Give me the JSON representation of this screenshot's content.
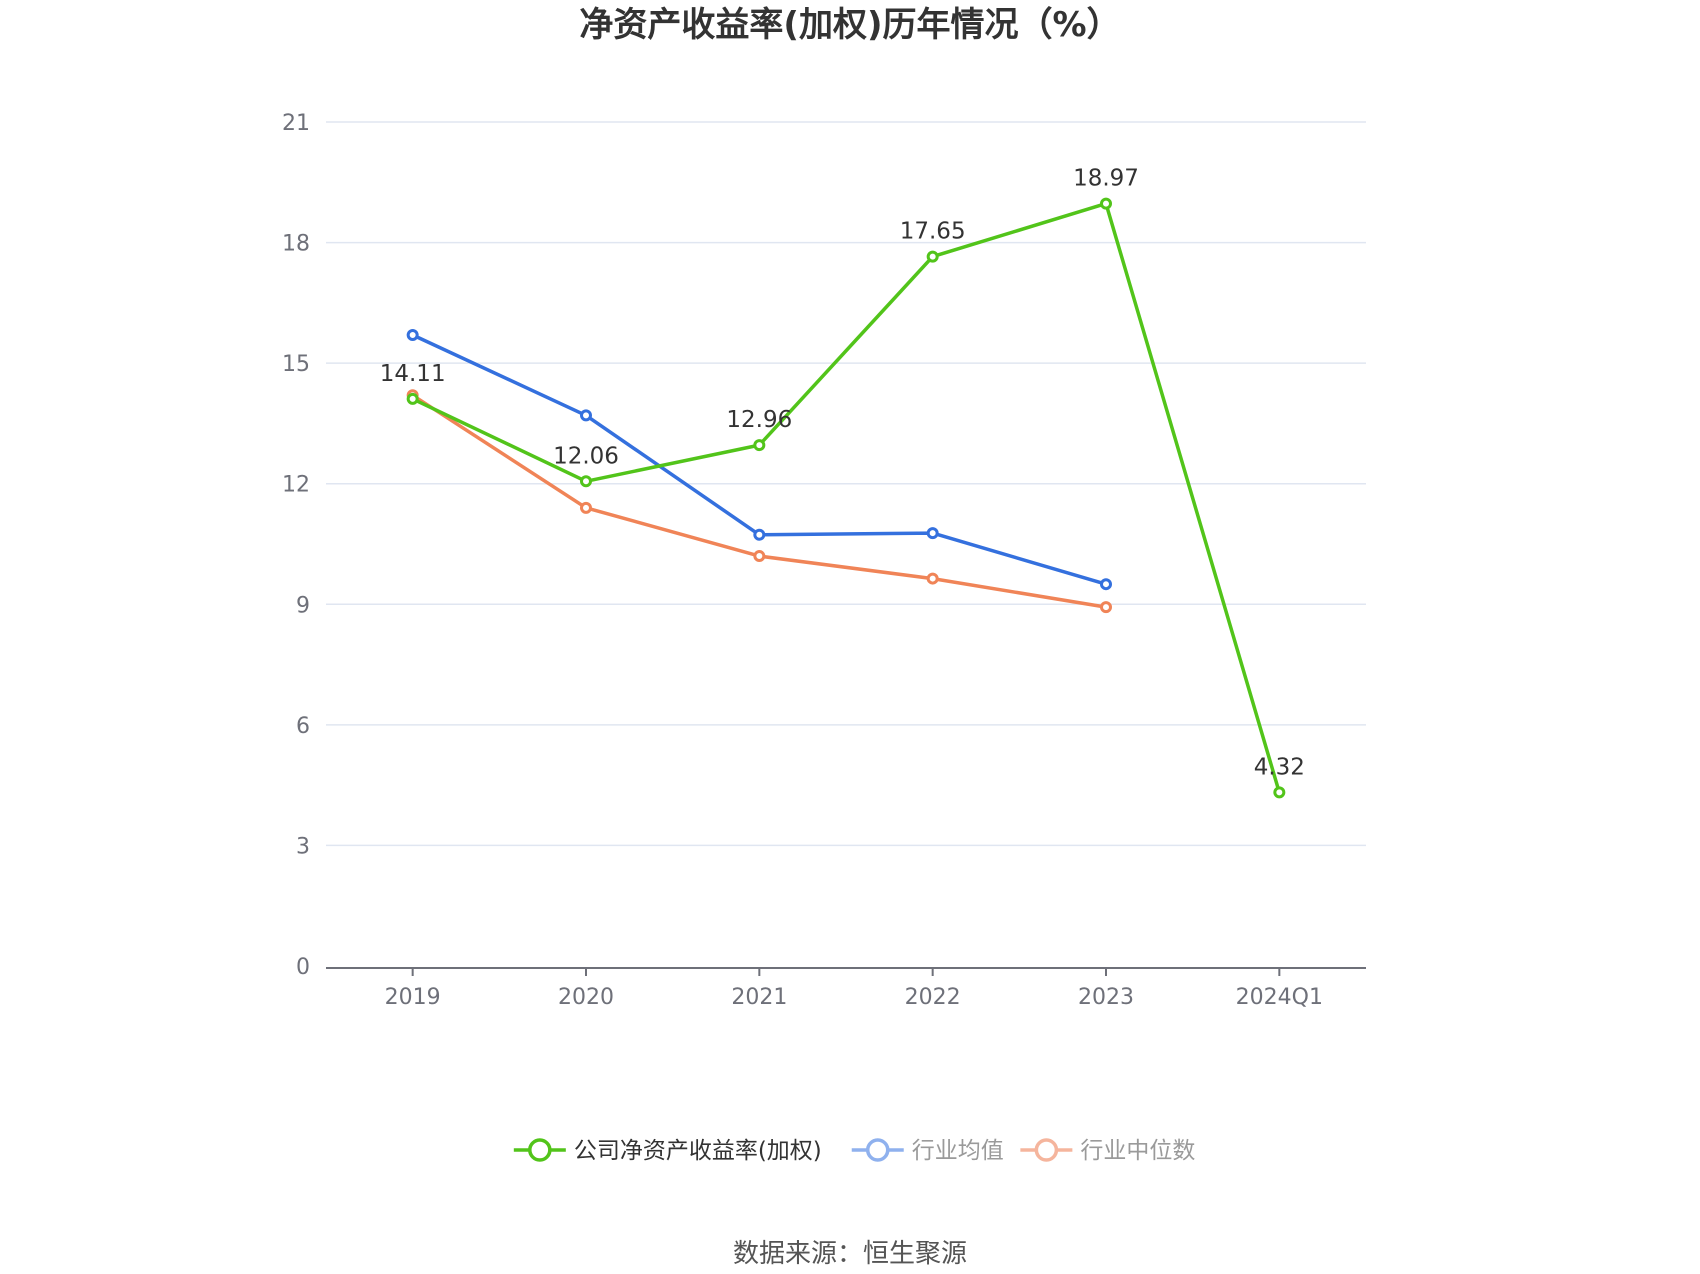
{
  "chart_data": {
    "type": "line",
    "title": "净资产收益率(加权)历年情况（%）",
    "categories": [
      "2019",
      "2020",
      "2021",
      "2022",
      "2023",
      "2024Q1"
    ],
    "ylim": [
      0,
      21
    ],
    "yticks": [
      0,
      3,
      6,
      9,
      12,
      15,
      18,
      21
    ],
    "grid": true,
    "legend_position": "bottom",
    "series": [
      {
        "name": "公司净资产收益率(加权)",
        "color": "#52c41a",
        "values": [
          14.11,
          12.06,
          12.96,
          17.65,
          18.97,
          4.32
        ],
        "labels": [
          "14.11",
          "12.06",
          "12.96",
          "17.65",
          "18.97",
          "4.32"
        ],
        "show_labels": true
      },
      {
        "name": "行业均值",
        "color": "#3470de",
        "legend_color": "#8fb1ee",
        "values": [
          15.7,
          13.7,
          10.73,
          10.77,
          9.5,
          null
        ],
        "show_labels": false
      },
      {
        "name": "行业中位数",
        "color": "#f08457",
        "legend_color": "#f5b59d",
        "values": [
          14.2,
          11.4,
          10.2,
          9.64,
          8.93,
          null
        ],
        "show_labels": false
      }
    ]
  },
  "footer": {
    "source": "数据来源：恒生聚源"
  }
}
